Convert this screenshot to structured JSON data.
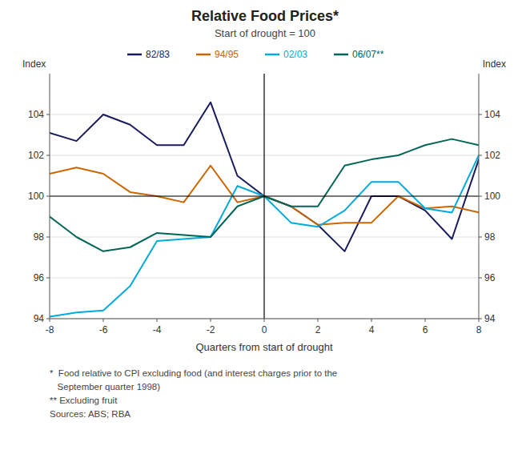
{
  "chart_data": {
    "type": "line",
    "title": "Relative Food Prices*",
    "subtitle": "Start of drought = 100",
    "xlabel": "Quarters from start of drought",
    "ylabel": "Index",
    "y2label": "Index",
    "footnotes": [
      "*  Food relative to CPI excluding food (and interest charges prior to the",
      "   September quarter 1998)",
      "** Excluding fruit",
      "Sources: ABS; RBA"
    ],
    "x": [
      -8,
      -7,
      -6,
      -5,
      -4,
      -3,
      -2,
      -1,
      0,
      1,
      2,
      3,
      4,
      5,
      6,
      7,
      8
    ],
    "xlim": [
      -8,
      8
    ],
    "ylim": [
      94,
      106
    ],
    "xticks": [
      -8,
      -6,
      -4,
      -2,
      0,
      2,
      4,
      6,
      8
    ],
    "yticks": [
      94,
      96,
      98,
      100,
      102,
      104
    ],
    "y2lim": [
      94,
      106
    ],
    "y2ticks": [
      94,
      96,
      98,
      100,
      102,
      104
    ],
    "grid": true,
    "legend": "top",
    "hline": 100,
    "vline": 0,
    "series": [
      {
        "name": "82/83",
        "color": "#1a1a5e",
        "values": [
          103.1,
          102.7,
          104.0,
          103.5,
          102.5,
          102.5,
          104.6,
          101.0,
          100.0,
          99.5,
          98.6,
          97.3,
          100.0,
          100.0,
          99.3,
          97.9,
          101.8
        ]
      },
      {
        "name": "94/95",
        "color": "#cc6600",
        "values": [
          101.1,
          101.4,
          101.1,
          100.2,
          100.0,
          99.7,
          101.5,
          99.7,
          100.0,
          99.5,
          98.6,
          98.7,
          98.7,
          100.0,
          99.4,
          99.5,
          99.2
        ]
      },
      {
        "name": "02/03",
        "color": "#00aadd",
        "values": [
          94.1,
          94.3,
          94.4,
          95.6,
          97.8,
          97.9,
          98.0,
          100.5,
          100.0,
          98.7,
          98.5,
          99.3,
          100.7,
          100.7,
          99.4,
          99.2,
          102.0
        ]
      },
      {
        "name": "06/07**",
        "color": "#006655",
        "values": [
          99.0,
          98.0,
          97.3,
          97.5,
          98.2,
          98.1,
          98.0,
          99.5,
          100.0,
          99.5,
          99.5,
          101.5,
          101.8,
          102.0,
          102.5,
          102.8,
          102.5
        ]
      }
    ]
  }
}
